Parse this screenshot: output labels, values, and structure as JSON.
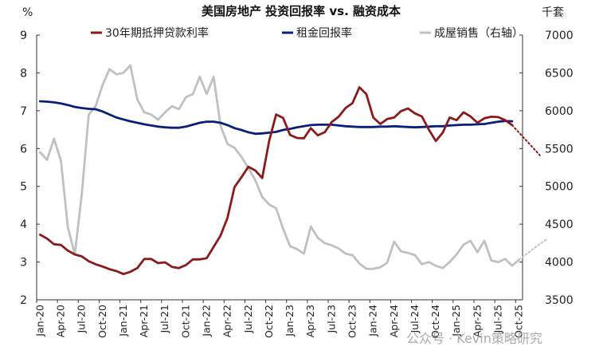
{
  "chart_data": {
    "type": "line",
    "title": "美国房地产 投资回报率 vs. 融资成本",
    "y_left_unit": "%",
    "y_right_unit": "千套",
    "ylim_left": [
      2,
      9
    ],
    "ylim_right": [
      3500,
      7000
    ],
    "yticks_left": [
      2,
      3,
      4,
      5,
      6,
      7,
      8,
      9
    ],
    "yticks_right": [
      3500,
      4000,
      4500,
      5000,
      5500,
      6000,
      6500,
      7000
    ],
    "x_tick_labels": [
      "Jan-20",
      "Apr-20",
      "Jul-20",
      "Oct-20",
      "Jan-21",
      "Apr-21",
      "Jul-21",
      "Oct-21",
      "Jan-22",
      "Apr-22",
      "Jul-22",
      "Oct-22",
      "Jan-23",
      "Apr-23",
      "Jul-23",
      "Oct-23",
      "Jan-24",
      "Apr-24",
      "Jul-24",
      "Oct-24",
      "Jan-25",
      "Apr-25",
      "Jul-25",
      "Oct-25"
    ],
    "x_start": "2020-01",
    "colors": {
      "mortgage": "#8B1A1A",
      "rent": "#0A1F7A",
      "sales": "#C0C0C0"
    },
    "series": [
      {
        "name": "30年期抵押贷款利率",
        "axis": "left",
        "values": [
          3.72,
          3.62,
          3.47,
          3.45,
          3.3,
          3.2,
          3.15,
          3.02,
          2.94,
          2.88,
          2.81,
          2.76,
          2.68,
          2.74,
          2.84,
          3.08,
          3.08,
          2.97,
          2.99,
          2.87,
          2.84,
          2.92,
          3.07,
          3.07,
          3.1,
          3.4,
          3.7,
          4.17,
          4.98,
          5.24,
          5.52,
          5.42,
          5.22,
          6.2,
          6.9,
          6.81,
          6.36,
          6.28,
          6.27,
          6.54,
          6.35,
          6.43,
          6.7,
          6.84,
          7.07,
          7.2,
          7.62,
          7.44,
          6.82,
          6.65,
          6.78,
          6.82,
          6.99,
          7.06,
          6.93,
          6.85,
          6.5,
          6.2,
          6.42,
          6.82,
          6.75,
          6.96,
          6.85,
          6.68,
          6.8,
          6.84,
          6.83,
          6.75,
          6.62
        ]
      },
      {
        "name": "30年期抵押贷款利率 预测",
        "axis": "left",
        "x_start_index": 68,
        "values": [
          6.62,
          6.42,
          6.22,
          6.02,
          5.82
        ]
      },
      {
        "name": "租金回报率",
        "axis": "left",
        "values": [
          7.25,
          7.24,
          7.22,
          7.19,
          7.15,
          7.1,
          7.07,
          7.05,
          7.04,
          6.98,
          6.9,
          6.82,
          6.77,
          6.72,
          6.68,
          6.64,
          6.61,
          6.58,
          6.56,
          6.55,
          6.55,
          6.58,
          6.63,
          6.68,
          6.71,
          6.71,
          6.68,
          6.62,
          6.54,
          6.49,
          6.43,
          6.39,
          6.4,
          6.42,
          6.44,
          6.49,
          6.52,
          6.56,
          6.59,
          6.62,
          6.63,
          6.63,
          6.63,
          6.61,
          6.59,
          6.58,
          6.57,
          6.57,
          6.57,
          6.58,
          6.58,
          6.59,
          6.58,
          6.57,
          6.56,
          6.57,
          6.58,
          6.59,
          6.59,
          6.61,
          6.62,
          6.63,
          6.63,
          6.64,
          6.65,
          6.68,
          6.71,
          6.73,
          6.72
        ]
      },
      {
        "name": "成屋销售（右轴）",
        "axis": "right",
        "values": [
          5450,
          5350,
          5630,
          5340,
          4460,
          4100,
          4890,
          5950,
          6060,
          6340,
          6550,
          6480,
          6500,
          6600,
          6150,
          5980,
          5950,
          5880,
          5980,
          6060,
          6020,
          6180,
          6220,
          6450,
          6220,
          6450,
          5800,
          5560,
          5510,
          5390,
          5240,
          5080,
          4860,
          4760,
          4710,
          4440,
          4210,
          4170,
          4110,
          4470,
          4320,
          4250,
          4220,
          4180,
          4110,
          4090,
          3980,
          3910,
          3910,
          3930,
          3990,
          4270,
          4140,
          4120,
          4090,
          3970,
          4000,
          3950,
          3920,
          4000,
          4100,
          4230,
          4280,
          4130,
          4280,
          4020,
          4000,
          4040,
          3950,
          4030
        ]
      },
      {
        "name": "成屋销售（右轴） 预测",
        "axis": "right",
        "x_start_index": 69,
        "values": [
          4030,
          4100,
          4170,
          4240,
          4300
        ]
      }
    ],
    "legend_placement": "top",
    "grid": false,
    "watermark": "公众号 · Kevin策略研究"
  }
}
